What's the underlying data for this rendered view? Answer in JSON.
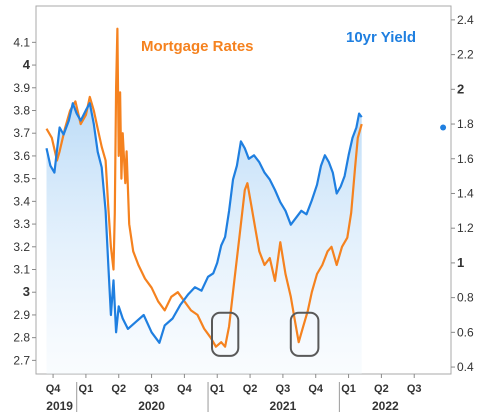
{
  "chart_data": {
    "type": "line",
    "title": "",
    "series": [
      {
        "name": "Mortgage Rates",
        "axis": "left",
        "color": "#f5821f",
        "points": [
          [
            2019.7,
            3.72
          ],
          [
            2019.74,
            3.68
          ],
          [
            2019.78,
            3.58
          ],
          [
            2019.8,
            3.62
          ],
          [
            2019.84,
            3.72
          ],
          [
            2019.88,
            3.8
          ],
          [
            2019.92,
            3.84
          ],
          [
            2019.96,
            3.74
          ],
          [
            2020.0,
            3.78
          ],
          [
            2020.03,
            3.86
          ],
          [
            2020.06,
            3.8
          ],
          [
            2020.09,
            3.72
          ],
          [
            2020.12,
            3.64
          ],
          [
            2020.15,
            3.58
          ],
          [
            2020.17,
            3.38
          ],
          [
            2020.19,
            3.2
          ],
          [
            2020.21,
            3.1
          ],
          [
            2020.22,
            3.35
          ],
          [
            2020.23,
            3.9
          ],
          [
            2020.24,
            4.16
          ],
          [
            2020.25,
            3.6
          ],
          [
            2020.26,
            3.88
          ],
          [
            2020.27,
            3.5
          ],
          [
            2020.28,
            3.7
          ],
          [
            2020.3,
            3.48
          ],
          [
            2020.31,
            3.62
          ],
          [
            2020.33,
            3.3
          ],
          [
            2020.36,
            3.18
          ],
          [
            2020.4,
            3.12
          ],
          [
            2020.45,
            3.06
          ],
          [
            2020.5,
            3.02
          ],
          [
            2020.55,
            2.96
          ],
          [
            2020.6,
            2.92
          ],
          [
            2020.65,
            2.98
          ],
          [
            2020.7,
            3.0
          ],
          [
            2020.75,
            2.96
          ],
          [
            2020.8,
            2.92
          ],
          [
            2020.85,
            2.9
          ],
          [
            2020.9,
            2.84
          ],
          [
            2020.95,
            2.8
          ],
          [
            2020.99,
            2.76
          ],
          [
            2021.03,
            2.78
          ],
          [
            2021.06,
            2.76
          ],
          [
            2021.09,
            2.85
          ],
          [
            2021.13,
            3.05
          ],
          [
            2021.17,
            3.25
          ],
          [
            2021.21,
            3.45
          ],
          [
            2021.23,
            3.48
          ],
          [
            2021.26,
            3.38
          ],
          [
            2021.29,
            3.28
          ],
          [
            2021.32,
            3.18
          ],
          [
            2021.36,
            3.12
          ],
          [
            2021.4,
            3.15
          ],
          [
            2021.44,
            3.05
          ],
          [
            2021.48,
            3.22
          ],
          [
            2021.52,
            3.08
          ],
          [
            2021.56,
            2.98
          ],
          [
            2021.59,
            2.88
          ],
          [
            2021.62,
            2.78
          ],
          [
            2021.65,
            2.84
          ],
          [
            2021.69,
            2.92
          ],
          [
            2021.72,
            3.0
          ],
          [
            2021.76,
            3.08
          ],
          [
            2021.8,
            3.12
          ],
          [
            2021.84,
            3.18
          ],
          [
            2021.87,
            3.2
          ],
          [
            2021.91,
            3.12
          ],
          [
            2021.95,
            3.2
          ],
          [
            2021.99,
            3.24
          ],
          [
            2022.02,
            3.35
          ],
          [
            2022.05,
            3.55
          ],
          [
            2022.07,
            3.68
          ],
          [
            2022.09,
            3.72
          ],
          [
            2022.1,
            3.74
          ]
        ]
      },
      {
        "name": "10yr Yield",
        "axis": "right",
        "color": "#1f7fe0",
        "points": [
          [
            2019.7,
            1.66
          ],
          [
            2019.73,
            1.56
          ],
          [
            2019.76,
            1.52
          ],
          [
            2019.8,
            1.78
          ],
          [
            2019.83,
            1.74
          ],
          [
            2019.87,
            1.82
          ],
          [
            2019.9,
            1.92
          ],
          [
            2019.93,
            1.86
          ],
          [
            2019.96,
            1.82
          ],
          [
            2020.0,
            1.88
          ],
          [
            2020.03,
            1.92
          ],
          [
            2020.06,
            1.8
          ],
          [
            2020.09,
            1.64
          ],
          [
            2020.12,
            1.55
          ],
          [
            2020.15,
            1.3
          ],
          [
            2020.17,
            1.0
          ],
          [
            2020.19,
            0.7
          ],
          [
            2020.21,
            0.9
          ],
          [
            2020.23,
            0.6
          ],
          [
            2020.25,
            0.75
          ],
          [
            2020.28,
            0.68
          ],
          [
            2020.32,
            0.62
          ],
          [
            2020.38,
            0.66
          ],
          [
            2020.44,
            0.7
          ],
          [
            2020.5,
            0.6
          ],
          [
            2020.56,
            0.54
          ],
          [
            2020.6,
            0.64
          ],
          [
            2020.66,
            0.68
          ],
          [
            2020.72,
            0.76
          ],
          [
            2020.78,
            0.82
          ],
          [
            2020.83,
            0.86
          ],
          [
            2020.88,
            0.84
          ],
          [
            2020.93,
            0.92
          ],
          [
            2020.97,
            0.94
          ],
          [
            2021.0,
            1.0
          ],
          [
            2021.03,
            1.1
          ],
          [
            2021.06,
            1.15
          ],
          [
            2021.09,
            1.3
          ],
          [
            2021.12,
            1.48
          ],
          [
            2021.15,
            1.56
          ],
          [
            2021.18,
            1.7
          ],
          [
            2021.21,
            1.66
          ],
          [
            2021.24,
            1.6
          ],
          [
            2021.28,
            1.62
          ],
          [
            2021.32,
            1.58
          ],
          [
            2021.36,
            1.52
          ],
          [
            2021.4,
            1.48
          ],
          [
            2021.44,
            1.42
          ],
          [
            2021.48,
            1.35
          ],
          [
            2021.52,
            1.3
          ],
          [
            2021.56,
            1.22
          ],
          [
            2021.6,
            1.26
          ],
          [
            2021.64,
            1.3
          ],
          [
            2021.68,
            1.28
          ],
          [
            2021.72,
            1.36
          ],
          [
            2021.76,
            1.45
          ],
          [
            2021.79,
            1.56
          ],
          [
            2021.82,
            1.62
          ],
          [
            2021.85,
            1.58
          ],
          [
            2021.88,
            1.52
          ],
          [
            2021.91,
            1.4
          ],
          [
            2021.94,
            1.44
          ],
          [
            2021.97,
            1.5
          ],
          [
            2022.0,
            1.62
          ],
          [
            2022.03,
            1.72
          ],
          [
            2022.06,
            1.78
          ],
          [
            2022.08,
            1.86
          ],
          [
            2022.1,
            1.84
          ]
        ]
      }
    ],
    "x_range": [
      2019.62,
      2022.78
    ],
    "left_axis": {
      "ylim": [
        2.64,
        4.26
      ],
      "ticks": [
        2.7,
        2.8,
        2.9,
        3.0,
        3.1,
        3.2,
        3.3,
        3.4,
        3.5,
        3.6,
        3.7,
        3.8,
        3.9,
        4.0,
        4.1
      ],
      "tick_labels": [
        "2.7",
        "2.8",
        "2.9",
        "3",
        "3.1",
        "3.2",
        "3.3",
        "3.4",
        "3.5",
        "3.6",
        "3.7",
        "3.8",
        "3.9",
        "4",
        "4.1"
      ],
      "bold_ticks": [
        "3",
        "4"
      ]
    },
    "right_axis": {
      "ylim": [
        0.36,
        2.48
      ],
      "ticks": [
        0.4,
        0.6,
        0.8,
        1.0,
        1.2,
        1.4,
        1.6,
        1.8,
        2.0,
        2.2,
        2.4
      ],
      "tick_labels": [
        "0.4",
        "0.6",
        "0.8",
        "1",
        "1.2",
        "1.4",
        "1.6",
        "1.8",
        "2",
        "2.2",
        "2.4"
      ],
      "bold_ticks": [
        "1",
        "2"
      ]
    },
    "x_quarter_ticks": [
      {
        "label": "Q4",
        "x": 2019.75
      },
      {
        "label": "Q1",
        "x": 2020.0
      },
      {
        "label": "Q2",
        "x": 2020.25
      },
      {
        "label": "Q3",
        "x": 2020.5
      },
      {
        "label": "Q4",
        "x": 2020.75
      },
      {
        "label": "Q1",
        "x": 2021.0
      },
      {
        "label": "Q2",
        "x": 2021.25
      },
      {
        "label": "Q3",
        "x": 2021.5
      },
      {
        "label": "Q4",
        "x": 2021.75
      },
      {
        "label": "Q1",
        "x": 2022.0
      },
      {
        "label": "Q2",
        "x": 2022.25
      },
      {
        "label": "Q3",
        "x": 2022.5
      }
    ],
    "x_year_labels": [
      {
        "label": "2019",
        "center": 2019.8
      },
      {
        "label": "2020",
        "center": 2020.5
      },
      {
        "label": "2021",
        "center": 2021.5
      },
      {
        "label": "2022",
        "center": 2022.28
      }
    ],
    "year_dividers": [
      2019.93,
      2020.93,
      2021.93
    ],
    "legend": {
      "mortgage_label": "Mortgage Rates",
      "yield_label": "10yr Yield",
      "placement": "top"
    },
    "annotations": [
      {
        "type": "rounded-box",
        "x_from": 2020.96,
        "x_to": 2021.16,
        "y_from": 2.72,
        "y_to": 2.91,
        "axis": "left"
      },
      {
        "type": "rounded-box",
        "x_from": 2021.56,
        "x_to": 2021.77,
        "y_from": 2.72,
        "y_to": 2.91,
        "axis": "left"
      },
      {
        "type": "marker-dot",
        "x": 2022.72,
        "y": 1.78,
        "axis": "right",
        "color": "#1f7fe0"
      }
    ],
    "grid": false,
    "area_fill": "10yr Yield"
  }
}
